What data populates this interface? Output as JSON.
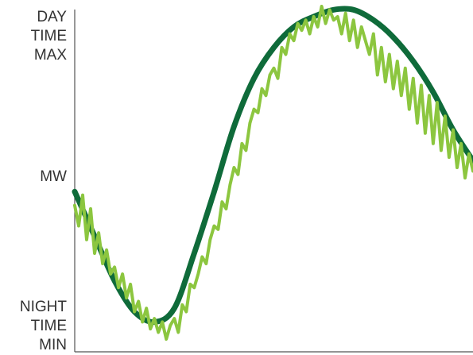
{
  "chart_data": {
    "type": "line",
    "title": "",
    "xlabel": "",
    "ylabel": "",
    "y_tick_labels": {
      "top": [
        "DAY",
        "TIME",
        "MAX"
      ],
      "middle": "MW",
      "bottom": [
        "NIGHT",
        "TIME",
        "MIN"
      ]
    },
    "ylim": [
      0,
      1
    ],
    "xlim": [
      0,
      1
    ],
    "grid": false,
    "legend": "none",
    "series": [
      {
        "style": "smooth",
        "color": "#0f6b3a",
        "x": [
          0.0,
          0.05,
          0.1,
          0.15,
          0.2,
          0.25,
          0.3,
          0.35,
          0.4,
          0.45,
          0.5,
          0.55,
          0.6,
          0.65,
          0.7,
          0.75,
          0.8,
          0.85,
          0.9,
          0.95,
          1.0
        ],
        "y": [
          0.46,
          0.33,
          0.2,
          0.11,
          0.08,
          0.12,
          0.28,
          0.46,
          0.65,
          0.79,
          0.88,
          0.94,
          0.97,
          0.99,
          0.99,
          0.96,
          0.91,
          0.84,
          0.75,
          0.64,
          0.55
        ]
      },
      {
        "style": "noisy",
        "color": "#8cc63f",
        "x": [
          0.0,
          0.01,
          0.02,
          0.03,
          0.04,
          0.05,
          0.06,
          0.07,
          0.08,
          0.09,
          0.1,
          0.11,
          0.12,
          0.13,
          0.14,
          0.15,
          0.16,
          0.17,
          0.18,
          0.19,
          0.2,
          0.21,
          0.22,
          0.23,
          0.24,
          0.25,
          0.26,
          0.27,
          0.28,
          0.29,
          0.3,
          0.31,
          0.32,
          0.33,
          0.34,
          0.35,
          0.36,
          0.37,
          0.38,
          0.39,
          0.4,
          0.41,
          0.42,
          0.43,
          0.44,
          0.45,
          0.46,
          0.47,
          0.48,
          0.49,
          0.5,
          0.51,
          0.52,
          0.53,
          0.54,
          0.55,
          0.56,
          0.57,
          0.58,
          0.59,
          0.6,
          0.61,
          0.62,
          0.63,
          0.64,
          0.65,
          0.66,
          0.67,
          0.68,
          0.69,
          0.7,
          0.71,
          0.72,
          0.73,
          0.74,
          0.75,
          0.76,
          0.77,
          0.78,
          0.79,
          0.8,
          0.81,
          0.82,
          0.83,
          0.84,
          0.85,
          0.86,
          0.87,
          0.88,
          0.89,
          0.9,
          0.91,
          0.92,
          0.93,
          0.94,
          0.95,
          0.96,
          0.97,
          0.98,
          0.99,
          1.0
        ],
        "y": [
          0.42,
          0.36,
          0.45,
          0.32,
          0.41,
          0.28,
          0.34,
          0.25,
          0.29,
          0.22,
          0.24,
          0.18,
          0.22,
          0.15,
          0.19,
          0.11,
          0.14,
          0.08,
          0.12,
          0.06,
          0.09,
          0.05,
          0.08,
          0.03,
          0.07,
          0.09,
          0.05,
          0.13,
          0.11,
          0.19,
          0.18,
          0.22,
          0.27,
          0.25,
          0.32,
          0.36,
          0.35,
          0.43,
          0.41,
          0.48,
          0.53,
          0.51,
          0.6,
          0.58,
          0.66,
          0.7,
          0.69,
          0.76,
          0.74,
          0.8,
          0.82,
          0.79,
          0.88,
          0.86,
          0.92,
          0.9,
          0.95,
          0.93,
          0.96,
          0.92,
          0.97,
          0.94,
          1.0,
          0.95,
          0.99,
          0.96,
          0.97,
          0.92,
          0.98,
          0.9,
          0.96,
          0.88,
          0.94,
          0.9,
          0.86,
          0.92,
          0.8,
          0.88,
          0.78,
          0.86,
          0.76,
          0.84,
          0.74,
          0.82,
          0.7,
          0.79,
          0.66,
          0.77,
          0.63,
          0.74,
          0.6,
          0.72,
          0.58,
          0.68,
          0.56,
          0.64,
          0.53,
          0.6,
          0.5,
          0.57,
          0.52
        ]
      }
    ]
  }
}
